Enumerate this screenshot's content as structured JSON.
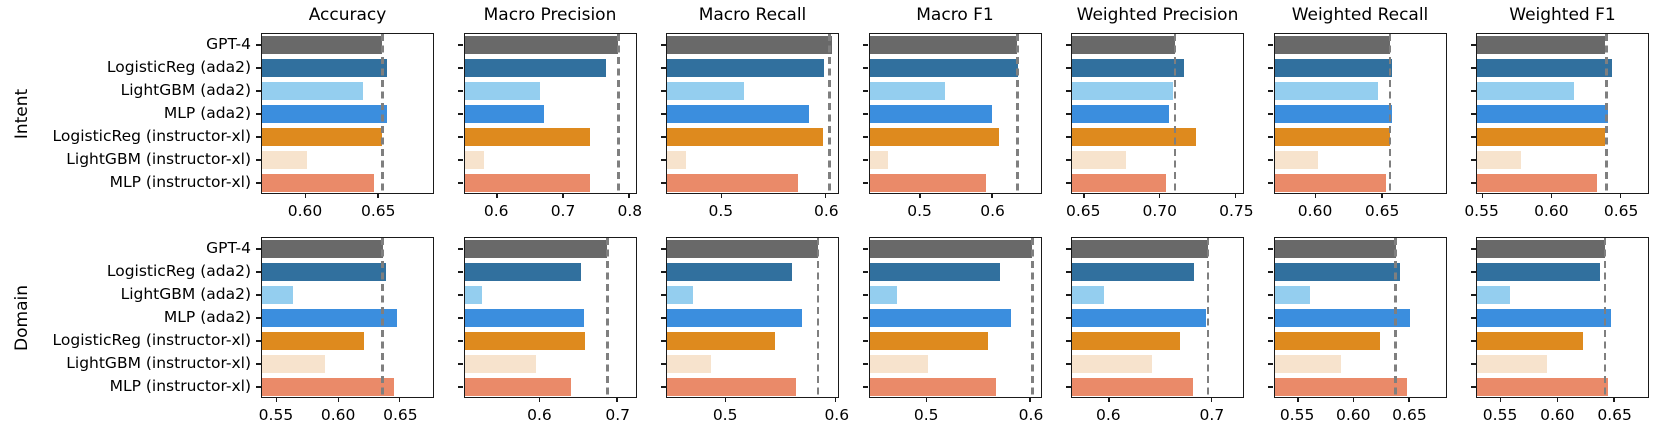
{
  "figure_type": "grouped horizontal bar chart grid (matplotlib style), 2 rows x 7 metrics",
  "row_labels": [
    "Intent",
    "Domain"
  ],
  "metric_titles": [
    "Accuracy",
    "Macro Precision",
    "Macro Recall",
    "Macro F1",
    "Weighted Precision",
    "Weighted Recall",
    "Weighted F1"
  ],
  "models": [
    "GPT-4",
    "LogisticReg (ada2)",
    "LightGBM (ada2)",
    "MLP (ada2)",
    "LogisticReg (instructor-xl)",
    "LightGBM (instructor-xl)",
    "MLP (instructor-xl)"
  ],
  "colors": {
    "bars": [
      "#696969",
      "#31709e",
      "#94ceef",
      "#3b8ede",
      "#de8a1e",
      "#f7e3cd",
      "#ea8a69"
    ],
    "baseline_dashed_line": "#7f7f7f",
    "frame": "#1a1a1a",
    "background": "#ffffff"
  },
  "chart_data": [
    {
      "type": "bar",
      "row": "Intent",
      "title": "Accuracy",
      "xlim": [
        0.57,
        0.688
      ],
      "ticks": [
        {
          "v": 0.6,
          "label": "0.60"
        },
        {
          "v": 0.65,
          "label": "0.65"
        }
      ],
      "baseline": 0.653,
      "categories": [
        "GPT-4",
        "LogisticReg (ada2)",
        "LightGBM (ada2)",
        "MLP (ada2)",
        "LogisticReg (instructor-xl)",
        "LightGBM (instructor-xl)",
        "MLP (instructor-xl)"
      ],
      "values": [
        0.653,
        0.656,
        0.64,
        0.656,
        0.653,
        0.601,
        0.647
      ]
    },
    {
      "type": "bar",
      "row": "Intent",
      "title": "Macro Precision",
      "xlim": [
        0.551,
        0.81
      ],
      "ticks": [
        {
          "v": 0.6,
          "label": "0.6"
        },
        {
          "v": 0.7,
          "label": "0.7"
        },
        {
          "v": 0.8,
          "label": "0.8"
        }
      ],
      "baseline": 0.784,
      "categories": [
        "GPT-4",
        "LogisticReg (ada2)",
        "LightGBM (ada2)",
        "MLP (ada2)",
        "LogisticReg (instructor-xl)",
        "LightGBM (instructor-xl)",
        "MLP (instructor-xl)"
      ],
      "values": [
        0.784,
        0.765,
        0.665,
        0.672,
        0.741,
        0.581,
        0.741
      ]
    },
    {
      "type": "bar",
      "row": "Intent",
      "title": "Macro Recall",
      "xlim": [
        0.448,
        0.612
      ],
      "ticks": [
        {
          "v": 0.5,
          "label": "0.5"
        },
        {
          "v": 0.6,
          "label": "0.6"
        }
      ],
      "baseline": 0.604,
      "categories": [
        "GPT-4",
        "LogisticReg (ada2)",
        "LightGBM (ada2)",
        "MLP (ada2)",
        "LogisticReg (instructor-xl)",
        "LightGBM (instructor-xl)",
        "MLP (instructor-xl)"
      ],
      "values": [
        0.606,
        0.599,
        0.522,
        0.584,
        0.598,
        0.466,
        0.574
      ]
    },
    {
      "type": "bar",
      "row": "Intent",
      "title": "Macro F1",
      "xlim": [
        0.43,
        0.667
      ],
      "ticks": [
        {
          "v": 0.5,
          "label": "0.5"
        },
        {
          "v": 0.6,
          "label": "0.6"
        }
      ],
      "baseline": 0.635,
      "categories": [
        "GPT-4",
        "LogisticReg (ada2)",
        "LightGBM (ada2)",
        "MLP (ada2)",
        "LogisticReg (instructor-xl)",
        "LightGBM (instructor-xl)",
        "MLP (instructor-xl)"
      ],
      "values": [
        0.635,
        0.636,
        0.535,
        0.6,
        0.609,
        0.455,
        0.591
      ]
    },
    {
      "type": "bar",
      "row": "Intent",
      "title": "Weighted Precision",
      "xlim": [
        0.642,
        0.755
      ],
      "ticks": [
        {
          "v": 0.65,
          "label": "0.65"
        },
        {
          "v": 0.7,
          "label": "0.70"
        },
        {
          "v": 0.75,
          "label": "0.75"
        }
      ],
      "baseline": 0.71,
      "categories": [
        "GPT-4",
        "LogisticReg (ada2)",
        "LightGBM (ada2)",
        "MLP (ada2)",
        "LogisticReg (instructor-xl)",
        "LightGBM (instructor-xl)",
        "MLP (instructor-xl)"
      ],
      "values": [
        0.71,
        0.716,
        0.709,
        0.706,
        0.724,
        0.678,
        0.704
      ]
    },
    {
      "type": "bar",
      "row": "Intent",
      "title": "Weighted Recall",
      "xlim": [
        0.569,
        0.698
      ],
      "ticks": [
        {
          "v": 0.6,
          "label": "0.60"
        },
        {
          "v": 0.65,
          "label": "0.65"
        }
      ],
      "baseline": 0.656,
      "categories": [
        "GPT-4",
        "LogisticReg (ada2)",
        "LightGBM (ada2)",
        "MLP (ada2)",
        "LogisticReg (instructor-xl)",
        "LightGBM (instructor-xl)",
        "MLP (instructor-xl)"
      ],
      "values": [
        0.656,
        0.658,
        0.647,
        0.658,
        0.656,
        0.602,
        0.653
      ]
    },
    {
      "type": "bar",
      "row": "Intent",
      "title": "Weighted F1",
      "xlim": [
        0.546,
        0.67
      ],
      "ticks": [
        {
          "v": 0.55,
          "label": "0.55"
        },
        {
          "v": 0.6,
          "label": "0.60"
        },
        {
          "v": 0.65,
          "label": "0.65"
        }
      ],
      "baseline": 0.64,
      "categories": [
        "GPT-4",
        "LogisticReg (ada2)",
        "LightGBM (ada2)",
        "MLP (ada2)",
        "LogisticReg (instructor-xl)",
        "LightGBM (instructor-xl)",
        "MLP (instructor-xl)"
      ],
      "values": [
        0.639,
        0.644,
        0.616,
        0.641,
        0.639,
        0.578,
        0.633
      ]
    },
    {
      "type": "bar",
      "row": "Domain",
      "title": "Accuracy",
      "xlim": [
        0.538,
        0.677
      ],
      "ticks": [
        {
          "v": 0.55,
          "label": "0.55"
        },
        {
          "v": 0.6,
          "label": "0.60"
        },
        {
          "v": 0.65,
          "label": "0.65"
        }
      ],
      "baseline": 0.636,
      "categories": [
        "GPT-4",
        "LogisticReg (ada2)",
        "LightGBM (ada2)",
        "MLP (ada2)",
        "LogisticReg (instructor-xl)",
        "LightGBM (instructor-xl)",
        "MLP (instructor-xl)"
      ],
      "values": [
        0.636,
        0.639,
        0.563,
        0.648,
        0.621,
        0.589,
        0.645
      ]
    },
    {
      "type": "bar",
      "row": "Domain",
      "title": "Macro Precision",
      "xlim": [
        0.503,
        0.724
      ],
      "ticks": [
        {
          "v": 0.6,
          "label": "0.6"
        },
        {
          "v": 0.7,
          "label": "0.7"
        }
      ],
      "baseline": 0.688,
      "categories": [
        "GPT-4",
        "LogisticReg (ada2)",
        "LightGBM (ada2)",
        "MLP (ada2)",
        "LogisticReg (instructor-xl)",
        "LightGBM (instructor-xl)",
        "MLP (instructor-xl)"
      ],
      "values": [
        0.687,
        0.653,
        0.526,
        0.657,
        0.659,
        0.595,
        0.64
      ]
    },
    {
      "type": "bar",
      "row": "Domain",
      "title": "Macro Recall",
      "xlim": [
        0.447,
        0.602
      ],
      "ticks": [
        {
          "v": 0.5,
          "label": "0.5"
        },
        {
          "v": 0.6,
          "label": "0.6"
        }
      ],
      "baseline": 0.584,
      "categories": [
        "GPT-4",
        "LogisticReg (ada2)",
        "LightGBM (ada2)",
        "MLP (ada2)",
        "LogisticReg (instructor-xl)",
        "LightGBM (instructor-xl)",
        "MLP (instructor-xl)"
      ],
      "values": [
        0.584,
        0.56,
        0.471,
        0.569,
        0.545,
        0.487,
        0.564
      ]
    },
    {
      "type": "bar",
      "row": "Domain",
      "title": "Macro F1",
      "xlim": [
        0.445,
        0.61
      ],
      "ticks": [
        {
          "v": 0.5,
          "label": "0.5"
        },
        {
          "v": 0.6,
          "label": "0.6"
        }
      ],
      "baseline": 0.602,
      "categories": [
        "GPT-4",
        "LogisticReg (ada2)",
        "LightGBM (ada2)",
        "MLP (ada2)",
        "LogisticReg (instructor-xl)",
        "LightGBM (instructor-xl)",
        "MLP (instructor-xl)"
      ],
      "values": [
        0.602,
        0.571,
        0.472,
        0.582,
        0.559,
        0.501,
        0.567
      ]
    },
    {
      "type": "bar",
      "row": "Domain",
      "title": "Weighted Precision",
      "xlim": [
        0.564,
        0.731
      ],
      "ticks": [
        {
          "v": 0.6,
          "label": "0.6"
        },
        {
          "v": 0.7,
          "label": "0.7"
        }
      ],
      "baseline": 0.697,
      "categories": [
        "GPT-4",
        "LogisticReg (ada2)",
        "LightGBM (ada2)",
        "MLP (ada2)",
        "LogisticReg (instructor-xl)",
        "LightGBM (instructor-xl)",
        "MLP (instructor-xl)"
      ],
      "values": [
        0.697,
        0.683,
        0.595,
        0.695,
        0.669,
        0.642,
        0.682
      ]
    },
    {
      "type": "bar",
      "row": "Domain",
      "title": "Weighted Recall",
      "xlim": [
        0.529,
        0.683
      ],
      "ticks": [
        {
          "v": 0.55,
          "label": "0.55"
        },
        {
          "v": 0.6,
          "label": "0.60"
        },
        {
          "v": 0.65,
          "label": "0.65"
        }
      ],
      "baseline": 0.638,
      "categories": [
        "GPT-4",
        "LogisticReg (ada2)",
        "LightGBM (ada2)",
        "MLP (ada2)",
        "LogisticReg (instructor-xl)",
        "LightGBM (instructor-xl)",
        "MLP (instructor-xl)"
      ],
      "values": [
        0.638,
        0.642,
        0.561,
        0.651,
        0.624,
        0.589,
        0.648
      ]
    },
    {
      "type": "bar",
      "row": "Domain",
      "title": "Weighted F1",
      "xlim": [
        0.529,
        0.68
      ],
      "ticks": [
        {
          "v": 0.55,
          "label": "0.55"
        },
        {
          "v": 0.6,
          "label": "0.60"
        },
        {
          "v": 0.65,
          "label": "0.65"
        }
      ],
      "baseline": 0.642,
      "categories": [
        "GPT-4",
        "LogisticReg (ada2)",
        "LightGBM (ada2)",
        "MLP (ada2)",
        "LogisticReg (instructor-xl)",
        "LightGBM (instructor-xl)",
        "MLP (instructor-xl)"
      ],
      "values": [
        0.642,
        0.638,
        0.558,
        0.647,
        0.623,
        0.591,
        0.645
      ]
    }
  ]
}
